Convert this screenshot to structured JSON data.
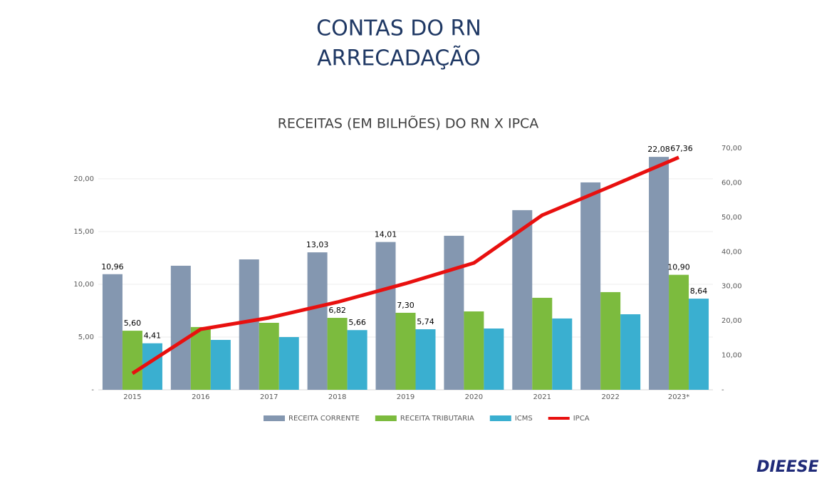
{
  "header": {
    "title_line1": "CONTAS DO RN",
    "title_line2": "ARRECADAÇÃO"
  },
  "logo": "DIEESE",
  "chart_data": {
    "type": "bar",
    "title": "RECEITAS (EM BILHÕES) DO RN X IPCA",
    "categories": [
      "2015",
      "2016",
      "2017",
      "2018",
      "2019",
      "2020",
      "2021",
      "2022",
      "2023*"
    ],
    "series": [
      {
        "name": "RECEITA CORRENTE",
        "type": "bar",
        "color": "#8497b0",
        "values": [
          10.96,
          11.76,
          12.36,
          13.03,
          14.01,
          14.6,
          17.03,
          19.66,
          22.08
        ],
        "value_labels": [
          "10,96",
          null,
          null,
          "13,03",
          "14,01",
          null,
          null,
          null,
          "22,08"
        ]
      },
      {
        "name": "RECEITA TRIBUTARIA",
        "type": "bar",
        "color": "#7cbb3e",
        "values": [
          5.6,
          5.95,
          6.35,
          6.82,
          7.3,
          7.43,
          8.72,
          9.26,
          10.9
        ],
        "value_labels": [
          "5,60",
          null,
          null,
          "6,82",
          "7,30",
          null,
          null,
          null,
          "10,90"
        ]
      },
      {
        "name": "ICMS",
        "type": "bar",
        "color": "#3aafd0",
        "values": [
          4.41,
          4.73,
          5.0,
          5.66,
          5.74,
          5.81,
          6.76,
          7.16,
          8.64
        ],
        "value_labels": [
          "4,41",
          null,
          null,
          "5,66",
          "5,74",
          null,
          null,
          null,
          "8,64"
        ]
      },
      {
        "name": "IPCA",
        "type": "line",
        "axis": "y2",
        "color": "#e8100f",
        "values": [
          4.75,
          17.55,
          20.86,
          25.4,
          30.8,
          36.75,
          50.6,
          58.9,
          67.36
        ],
        "value_labels": [
          null,
          null,
          null,
          null,
          null,
          null,
          null,
          null,
          "67,36"
        ]
      }
    ],
    "ylim": [
      0,
      22.9
    ],
    "yticks": [
      {
        "value": 0,
        "label": "-"
      },
      {
        "value": 5,
        "label": "5,00"
      },
      {
        "value": 10,
        "label": "10,00"
      },
      {
        "value": 15,
        "label": "15,00"
      },
      {
        "value": 20,
        "label": "20,00"
      }
    ],
    "y2lim": [
      0,
      70
    ],
    "y2ticks": [
      {
        "value": 0,
        "label": "-"
      },
      {
        "value": 10,
        "label": "10,00"
      },
      {
        "value": 20,
        "label": "20,00"
      },
      {
        "value": 30,
        "label": "30,00"
      },
      {
        "value": 40,
        "label": "40,00"
      },
      {
        "value": 50,
        "label": "50,00"
      },
      {
        "value": 60,
        "label": "60,00"
      },
      {
        "value": 70,
        "label": "70,00"
      }
    ],
    "grid": true,
    "legend": "bottom"
  }
}
